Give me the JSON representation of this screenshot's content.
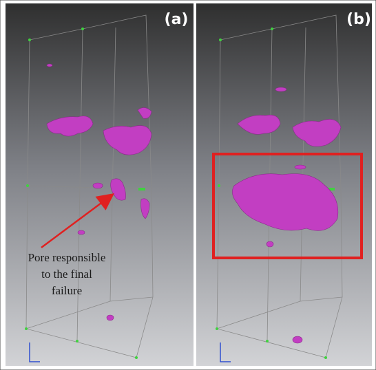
{
  "panels": [
    {
      "label": "(a)"
    },
    {
      "label": "(b)"
    }
  ],
  "annotation": {
    "lines": [
      "Pore responsible",
      "to the final",
      "failure"
    ]
  }
}
